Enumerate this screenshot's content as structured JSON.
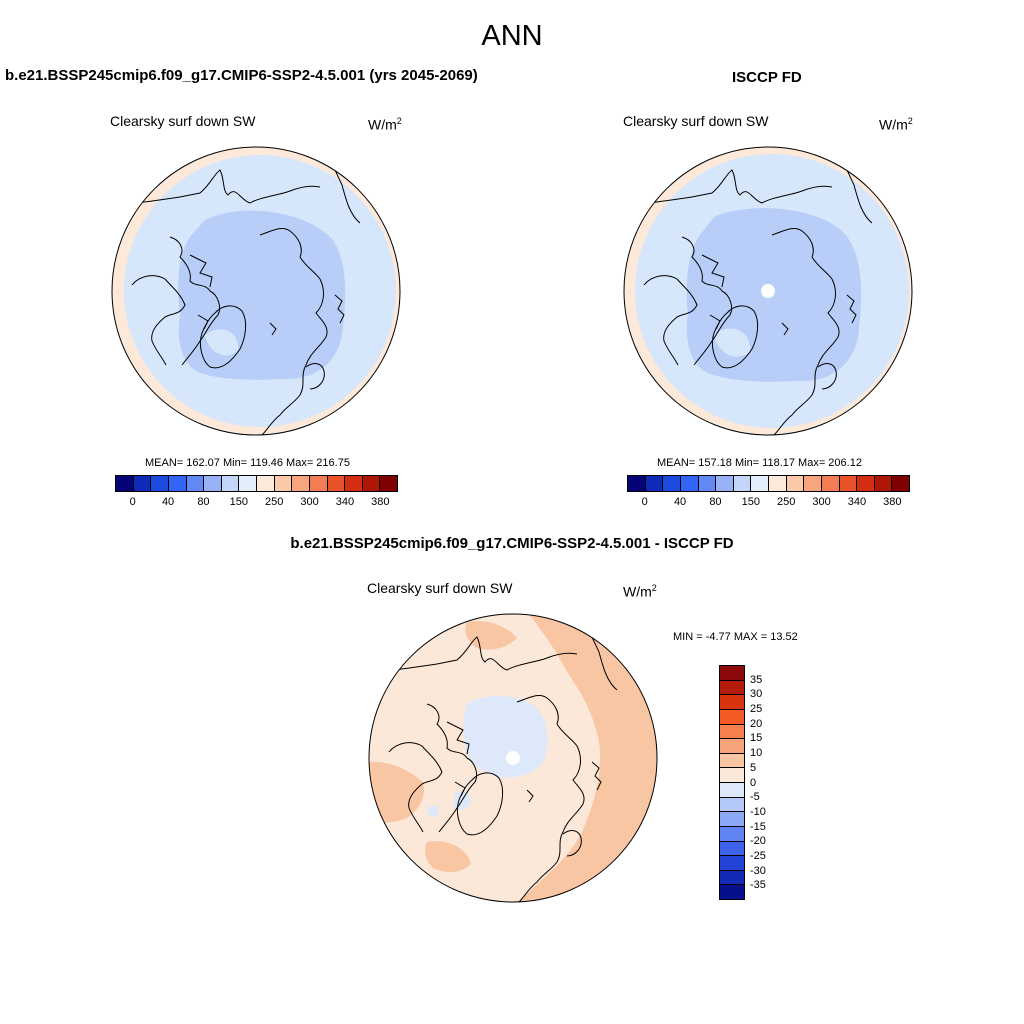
{
  "page": {
    "title": "ANN",
    "diff_title": "b.e21.BSSP245cmip6.f09_g17.CMIP6-SSP2-4.5.001 - ISCCP FD"
  },
  "panels": {
    "model": {
      "case_title": "b.e21.BSSP245cmip6.f09_g17.CMIP6-SSP2-4.5.001 (yrs 2045-2069)",
      "variable": "Clearsky surf down SW",
      "units_base": "W/m",
      "units_exp": "2",
      "stats": "MEAN= 162.07  Min= 119.46  Max= 216.75"
    },
    "obs": {
      "case_title": "ISCCP FD",
      "variable": "Clearsky surf down SW",
      "units_base": "W/m",
      "units_exp": "2",
      "stats": "MEAN= 157.18  Min= 118.17  Max= 206.12"
    },
    "diff": {
      "variable": "Clearsky surf down SW",
      "units_base": "W/m",
      "units_exp": "2",
      "stats": "MIN =  -4.77 MAX =  13.52"
    }
  },
  "colorbar_abs": {
    "colors": [
      "#040377",
      "#0e2ab7",
      "#1c4bdf",
      "#3265f4",
      "#6188f5",
      "#97b1f6",
      "#c3d5f8",
      "#e3eefb",
      "#fde9da",
      "#f9c9a9",
      "#f7a57c",
      "#f27d55",
      "#ea5229",
      "#d52d12",
      "#b01605",
      "#800000"
    ],
    "tick_labels": [
      "0",
      "40",
      "80",
      "150",
      "250",
      "300",
      "340",
      "380"
    ]
  },
  "colorbar_diff": {
    "colors_top_to_bottom": [
      "#8d0a0a",
      "#b41d0b",
      "#d9340f",
      "#f35a24",
      "#f5804d",
      "#f7a37a",
      "#f9c6a4",
      "#fce8d8",
      "#dde9fb",
      "#b4c9f7",
      "#8aa8f5",
      "#5f84f2",
      "#3e61ea",
      "#2343d6",
      "#1229b6",
      "#05108a"
    ],
    "tick_labels": [
      "35",
      "30",
      "25",
      "20",
      "15",
      "10",
      "5",
      "0",
      "-5",
      "-10",
      "-15",
      "-20",
      "-25",
      "-30",
      "-35"
    ]
  },
  "map_colors": {
    "abs_low": "#b8cdf7",
    "abs_mid": "#d6e6fb",
    "abs_high": "#fde9da",
    "diff_pos_small": "#fce8d8",
    "diff_pos_mid": "#f9c6a4",
    "diff_neg_small": "#dde9fb",
    "coast": "#000000"
  }
}
